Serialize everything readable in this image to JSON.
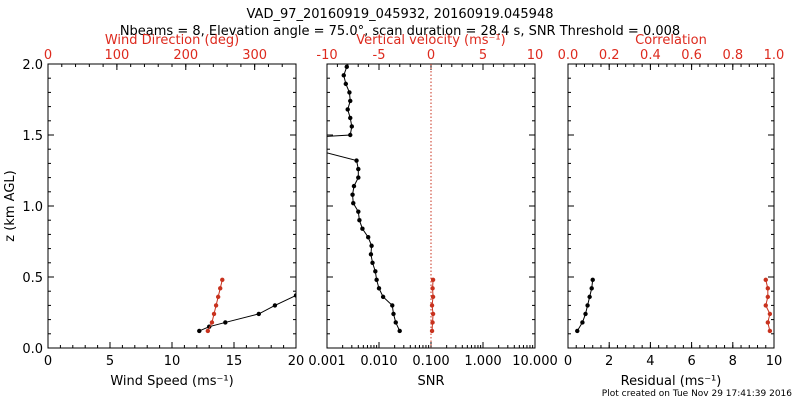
{
  "figure": {
    "title_line1": "VAD_97_20160919_045932, 20160919.045948",
    "title_line2": "Nbeams = 8, Elevation angle = 75.0°, scan duration = 28.4 s, SNR Threshold = 0.008",
    "footer": "Plot created on Tue Nov 29 17:41:39 2016"
  },
  "colors": {
    "axis": "#000000",
    "top_axis": "#dd2a1e",
    "red_series": "#c8321e",
    "black_series": "#000000"
  },
  "chart_data": [
    {
      "type": "line",
      "id": "left",
      "ylabel": "z (km AGL)",
      "ylim": [
        0,
        2
      ],
      "yticks": [
        "0.0",
        "0.5",
        "1.0",
        "1.5",
        "2.0"
      ],
      "xlabel": "Wind Speed (ms⁻¹)",
      "xlim": [
        0,
        20
      ],
      "xticks": [
        "0",
        "5",
        "10",
        "15",
        "20"
      ],
      "top_xlabel": "Wind Direction (deg)",
      "top_xlim": [
        0,
        360
      ],
      "top_xticks": [
        "0",
        "100",
        "200",
        "300"
      ],
      "series": [
        {
          "axis": "bottom",
          "color": "black",
          "x": [
            12.2,
            13.0,
            14.3,
            17.0,
            18.3,
            20.0
          ],
          "y": [
            0.12,
            0.15,
            0.18,
            0.24,
            0.3,
            0.37
          ]
        },
        {
          "axis": "top",
          "color": "red",
          "x": [
            232,
            238,
            241,
            244,
            247,
            250,
            253
          ],
          "y": [
            0.12,
            0.18,
            0.24,
            0.3,
            0.36,
            0.42,
            0.48
          ]
        }
      ]
    },
    {
      "type": "line",
      "id": "middle",
      "xlabel": "SNR",
      "xscale": "log",
      "xlim": [
        0.001,
        10
      ],
      "xticks": [
        "0.001",
        "0.010",
        "0.100",
        "1.000",
        "10.000"
      ],
      "top_xlabel": "Vertical velocity (ms⁻¹)",
      "top_xlim": [
        -10,
        10
      ],
      "top_xticks": [
        "-10",
        "-5",
        "0",
        "5",
        "10"
      ],
      "ylim": [
        0,
        2
      ],
      "reference_line": {
        "axis": "top",
        "x": 0,
        "style": "dotted"
      },
      "series": [
        {
          "axis": "bottom",
          "color": "black",
          "x": [
            0.025,
            0.021,
            0.019,
            0.018,
            0.012,
            0.01,
            0.009,
            0.0085,
            0.0075,
            0.007,
            0.0072,
            0.0062,
            0.0048,
            0.0042,
            0.004,
            0.0032,
            0.0031,
            0.0033,
            0.004,
            0.004,
            0.0037,
            0.0001,
            0.0028,
            0.003,
            0.0028,
            0.0025,
            0.0028,
            0.0027,
            0.0023,
            0.0021,
            0.0024
          ],
          "y": [
            0.12,
            0.18,
            0.24,
            0.3,
            0.36,
            0.42,
            0.48,
            0.54,
            0.6,
            0.66,
            0.72,
            0.78,
            0.84,
            0.9,
            0.96,
            1.02,
            1.08,
            1.14,
            1.2,
            1.26,
            1.32,
            1.47,
            1.5,
            1.56,
            1.62,
            1.68,
            1.74,
            1.8,
            1.86,
            1.92,
            1.98
          ]
        },
        {
          "axis": "top",
          "color": "red",
          "x": [
            0.1,
            0.15,
            0.2,
            0.1,
            0.2,
            0.15,
            0.2
          ],
          "y": [
            0.12,
            0.18,
            0.24,
            0.3,
            0.36,
            0.42,
            0.48
          ]
        }
      ]
    },
    {
      "type": "line",
      "id": "right",
      "xlabel": "Residual (ms⁻¹)",
      "xlim": [
        0,
        10
      ],
      "xticks": [
        "0",
        "2",
        "4",
        "6",
        "8",
        "10"
      ],
      "top_xlabel": "Correlation",
      "top_xlim": [
        0,
        1
      ],
      "top_xticks": [
        "0.0",
        "0.2",
        "0.4",
        "0.6",
        "0.8",
        "1.0"
      ],
      "ylim": [
        0,
        2
      ],
      "series": [
        {
          "axis": "bottom",
          "color": "black",
          "x": [
            0.45,
            0.7,
            0.85,
            0.95,
            1.05,
            1.15,
            1.2
          ],
          "y": [
            0.12,
            0.18,
            0.24,
            0.3,
            0.36,
            0.42,
            0.48
          ]
        },
        {
          "axis": "top",
          "color": "red",
          "x": [
            0.98,
            0.97,
            0.98,
            0.96,
            0.97,
            0.97,
            0.96
          ],
          "y": [
            0.12,
            0.18,
            0.24,
            0.3,
            0.36,
            0.42,
            0.48
          ]
        }
      ]
    }
  ]
}
